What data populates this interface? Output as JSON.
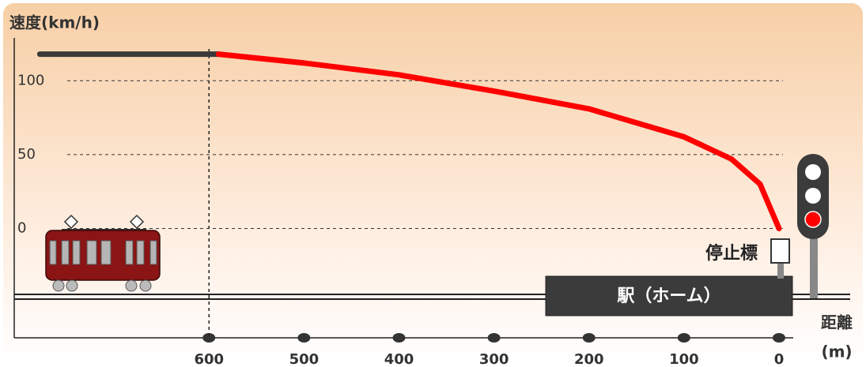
{
  "chart_data": {
    "type": "line",
    "ylabel": "速度(km/h)",
    "xlabel": "距離",
    "xunit": "(m)",
    "stop_marker_label": "停止標",
    "station_label": "駅（ホーム）",
    "xlim": [
      805,
      -15
    ],
    "ylim": [
      -74,
      129
    ],
    "xticks": [
      600,
      500,
      400,
      300,
      200,
      100,
      0
    ],
    "yticks": [
      0,
      50,
      100
    ],
    "grid": true,
    "zero_tick_color": "#1a1a8c",
    "series": [
      {
        "color": "#3a3a3a",
        "x": [
          778,
          590
        ],
        "values": [
          118,
          118
        ]
      },
      {
        "color": "#ff0000",
        "x": [
          590,
          500,
          400,
          300,
          200,
          100,
          50,
          20,
          0
        ],
        "values": [
          118,
          112,
          104,
          93,
          81,
          62,
          47,
          30,
          0
        ]
      }
    ]
  }
}
